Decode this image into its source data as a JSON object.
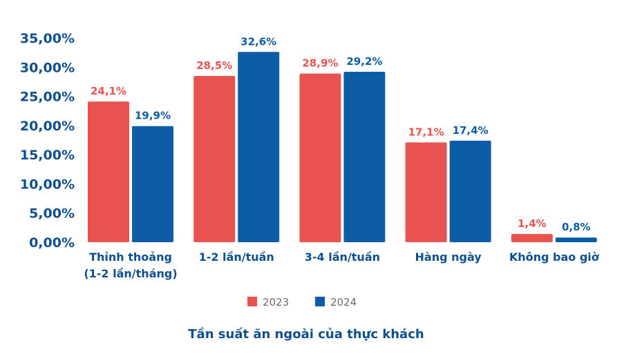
{
  "chart_data": {
    "type": "bar",
    "title": "Tần suất ăn ngoài của thực khách",
    "categories": [
      [
        "Thỉnh thoảng",
        "(1-2 lần/tháng)"
      ],
      [
        "1-2 lần/tuần"
      ],
      [
        "3-4 lần/tuần"
      ],
      [
        "Hàng ngày"
      ],
      [
        "Không bao giờ"
      ]
    ],
    "series": [
      {
        "name": "2023",
        "color": "#e8534f",
        "values": [
          24.1,
          28.5,
          28.9,
          17.1,
          1.4
        ],
        "labels": [
          "24,1%",
          "28,5%",
          "28,9%",
          "17,1%",
          "1,4%"
        ]
      },
      {
        "name": "2024",
        "color": "#0d5ca6",
        "values": [
          19.9,
          32.6,
          29.2,
          17.4,
          0.8
        ],
        "labels": [
          "19,9%",
          "32,6%",
          "29,2%",
          "17,4%",
          "0,8%"
        ]
      }
    ],
    "ylim": [
      0,
      35
    ],
    "yticks": [
      0,
      5,
      10,
      15,
      20,
      25,
      30,
      35
    ],
    "ytick_labels": [
      "0,00%",
      "5,00%",
      "10,00%",
      "15,00%",
      "20,00%",
      "25,00%",
      "30,00%",
      "35,00%"
    ],
    "grid": false,
    "legend": "bottom"
  }
}
